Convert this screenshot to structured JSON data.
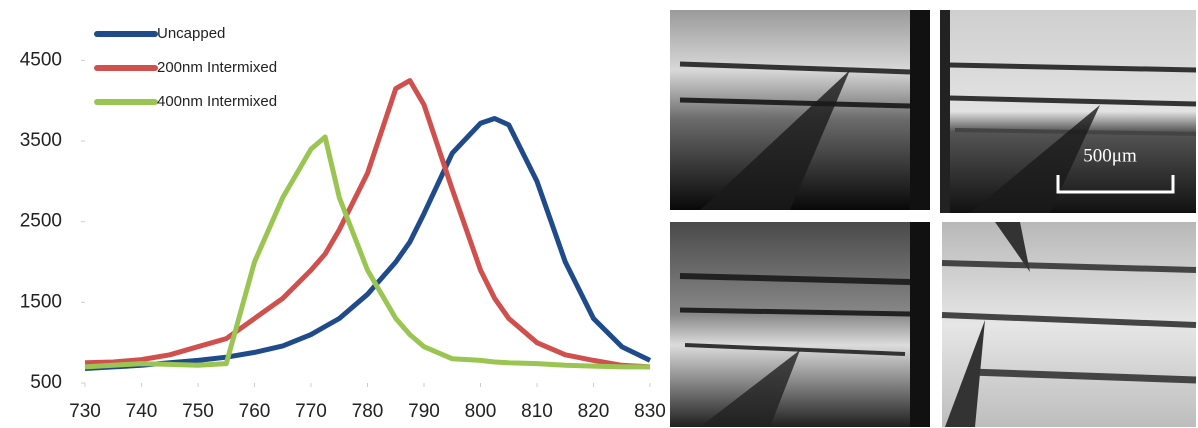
{
  "chart_data": {
    "type": "line",
    "x": [
      730,
      735,
      740,
      745,
      750,
      755,
      760,
      765,
      770,
      772.5,
      775,
      780,
      785,
      787.5,
      790,
      795,
      800,
      802.5,
      805,
      810,
      815,
      820,
      825,
      830
    ],
    "series": [
      {
        "name": "Uncapped",
        "color": "#1f4b8a",
        "values": [
          680,
          700,
          720,
          750,
          780,
          820,
          880,
          960,
          1100,
          1200,
          1300,
          1600,
          2000,
          2250,
          2600,
          3350,
          3720,
          3780,
          3700,
          3000,
          2000,
          1300,
          950,
          780
        ]
      },
      {
        "name": "200nm Intermixed",
        "color": "#cf504d",
        "values": [
          750,
          760,
          790,
          850,
          950,
          1050,
          1300,
          1550,
          1900,
          2100,
          2400,
          3100,
          4150,
          4250,
          3950,
          2900,
          1900,
          1550,
          1300,
          1000,
          850,
          780,
          720,
          700
        ]
      },
      {
        "name": "400nm Intermixed",
        "color": "#9bc553",
        "values": [
          700,
          720,
          740,
          730,
          720,
          740,
          2000,
          2800,
          3400,
          3550,
          2800,
          1900,
          1300,
          1100,
          950,
          800,
          780,
          760,
          750,
          740,
          720,
          710,
          700,
          700
        ]
      }
    ],
    "xlim": [
      730,
      830
    ],
    "xticks": [
      730,
      740,
      750,
      760,
      770,
      780,
      790,
      800,
      810,
      820,
      830
    ],
    "ylim": [
      500,
      5100
    ],
    "yticks": [
      500,
      1500,
      2500,
      3500,
      4500
    ],
    "grid": false,
    "legend": "upper left"
  },
  "images": {
    "scale_bar_label": "500μm"
  }
}
